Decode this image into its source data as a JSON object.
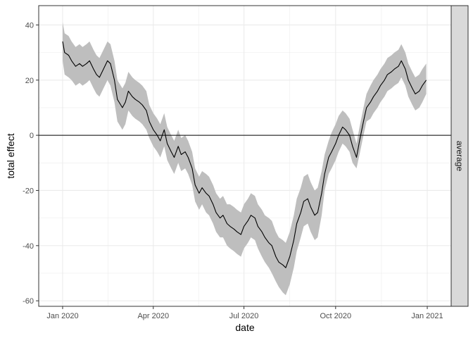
{
  "chart_data": {
    "type": "line",
    "title": "",
    "xlabel": "date",
    "ylabel": "total effect",
    "facet_label": "average",
    "xlim": [
      "2019-12-08",
      "2021-01-25"
    ],
    "ylim": [
      -62,
      47
    ],
    "x_ticks": [
      {
        "date": "2020-01-01",
        "label": "Jan 2020"
      },
      {
        "date": "2020-04-01",
        "label": "Apr 2020"
      },
      {
        "date": "2020-07-01",
        "label": "Jul 2020"
      },
      {
        "date": "2020-10-01",
        "label": "Oct 2020"
      },
      {
        "date": "2021-01-01",
        "label": "Jan 2021"
      }
    ],
    "y_ticks": [
      {
        "value": 40,
        "label": "40"
      },
      {
        "value": 20,
        "label": "20"
      },
      {
        "value": 0,
        "label": "0"
      },
      {
        "value": -20,
        "label": "-20"
      },
      {
        "value": -40,
        "label": "-40"
      },
      {
        "value": -60,
        "label": "-60"
      }
    ],
    "reference_line": 0,
    "grid": true,
    "colors": {
      "line": "#000000",
      "ribbon": "#bebebe",
      "strip": "#d9d9d9",
      "grid": "#ebebeb"
    },
    "series": [
      {
        "x": [
          "2020-01-01",
          "2020-01-03",
          "2020-01-07",
          "2020-01-10",
          "2020-01-14",
          "2020-01-18",
          "2020-01-21",
          "2020-01-25",
          "2020-01-28",
          "2020-02-01",
          "2020-02-04",
          "2020-02-07",
          "2020-02-11",
          "2020-02-15",
          "2020-02-18",
          "2020-02-22",
          "2020-02-25",
          "2020-03-01",
          "2020-03-04",
          "2020-03-07",
          "2020-03-11",
          "2020-03-14",
          "2020-03-18",
          "2020-03-21",
          "2020-03-25",
          "2020-03-28",
          "2020-04-01",
          "2020-04-05",
          "2020-04-08",
          "2020-04-12",
          "2020-04-15",
          "2020-04-19",
          "2020-04-22",
          "2020-04-26",
          "2020-04-29",
          "2020-05-03",
          "2020-05-06",
          "2020-05-10",
          "2020-05-13",
          "2020-05-17",
          "2020-05-20",
          "2020-05-24",
          "2020-05-27",
          "2020-05-31",
          "2020-06-03",
          "2020-06-07",
          "2020-06-10",
          "2020-06-14",
          "2020-06-17",
          "2020-06-21",
          "2020-06-24",
          "2020-06-28",
          "2020-07-01",
          "2020-07-05",
          "2020-07-08",
          "2020-07-12",
          "2020-07-15",
          "2020-07-19",
          "2020-07-22",
          "2020-07-26",
          "2020-07-29",
          "2020-08-02",
          "2020-08-05",
          "2020-08-09",
          "2020-08-12",
          "2020-08-16",
          "2020-08-20",
          "2020-08-23",
          "2020-08-27",
          "2020-08-30",
          "2020-09-03",
          "2020-09-06",
          "2020-09-10",
          "2020-09-13",
          "2020-09-17",
          "2020-09-20",
          "2020-09-24",
          "2020-09-27",
          "2020-10-01",
          "2020-10-04",
          "2020-10-08",
          "2020-10-11",
          "2020-10-15",
          "2020-10-18",
          "2020-10-22",
          "2020-10-25",
          "2020-10-29",
          "2020-11-01",
          "2020-11-05",
          "2020-11-08",
          "2020-11-12",
          "2020-11-15",
          "2020-11-19",
          "2020-11-22",
          "2020-11-26",
          "2020-11-29",
          "2020-12-03",
          "2020-12-06",
          "2020-12-10",
          "2020-12-13",
          "2020-12-17",
          "2020-12-20",
          "2020-12-24",
          "2020-12-27",
          "2020-12-31"
        ],
        "y": [
          34,
          30,
          29,
          27,
          25,
          26,
          25,
          26,
          27,
          24,
          22,
          21,
          24,
          27,
          26,
          20,
          13,
          10,
          12,
          16,
          14,
          13,
          12,
          11,
          9,
          5,
          2,
          0,
          -2,
          2,
          -3,
          -6,
          -8,
          -4,
          -7,
          -6,
          -8,
          -12,
          -18,
          -21,
          -19,
          -21,
          -22,
          -25,
          -28,
          -30,
          -29,
          -32,
          -33,
          -34,
          -35,
          -36,
          -33,
          -31,
          -29,
          -30,
          -33,
          -35,
          -37,
          -39,
          -40,
          -44,
          -46,
          -47,
          -48,
          -44,
          -38,
          -32,
          -28,
          -24,
          -23,
          -26,
          -29,
          -28,
          -21,
          -14,
          -8,
          -6,
          -3,
          0,
          3,
          2,
          0,
          -4,
          -8,
          -2,
          5,
          10,
          12,
          14,
          16,
          18,
          20,
          22,
          23,
          24,
          25,
          27,
          24,
          20,
          17,
          15,
          16,
          18,
          20
        ],
        "lower": [
          27,
          22,
          21,
          20,
          18,
          19,
          18,
          19,
          20,
          17,
          15,
          14,
          17,
          20,
          18,
          12,
          5,
          2,
          4,
          9,
          7,
          6,
          5,
          4,
          2,
          -1,
          -4,
          -6,
          -8,
          -4,
          -9,
          -12,
          -14,
          -10,
          -13,
          -12,
          -14,
          -18,
          -24,
          -27,
          -25,
          -28,
          -29,
          -32,
          -35,
          -37,
          -37,
          -40,
          -41,
          -42,
          -43,
          -44,
          -41,
          -39,
          -37,
          -38,
          -41,
          -44,
          -46,
          -48,
          -50,
          -53,
          -55,
          -57,
          -58,
          -54,
          -48,
          -42,
          -37,
          -33,
          -32,
          -35,
          -38,
          -37,
          -29,
          -20,
          -14,
          -12,
          -9,
          -6,
          -3,
          -4,
          -6,
          -10,
          -12,
          -7,
          0,
          5,
          6,
          8,
          10,
          12,
          14,
          16,
          17,
          18,
          19,
          21,
          18,
          14,
          11,
          9,
          10,
          12,
          15
        ],
        "upper": [
          41,
          37,
          36,
          34,
          32,
          33,
          32,
          33,
          34,
          31,
          29,
          28,
          31,
          34,
          33,
          27,
          20,
          17,
          19,
          23,
          21,
          20,
          19,
          18,
          16,
          11,
          8,
          6,
          4,
          8,
          3,
          0,
          -2,
          2,
          -1,
          0,
          -2,
          -6,
          -12,
          -15,
          -13,
          -14,
          -15,
          -18,
          -21,
          -23,
          -22,
          -25,
          -25,
          -26,
          -27,
          -28,
          -25,
          -23,
          -21,
          -22,
          -25,
          -27,
          -29,
          -30,
          -31,
          -35,
          -37,
          -38,
          -39,
          -35,
          -29,
          -23,
          -19,
          -15,
          -14,
          -17,
          -20,
          -19,
          -13,
          -7,
          -2,
          1,
          4,
          7,
          9,
          8,
          6,
          2,
          -3,
          3,
          10,
          15,
          18,
          20,
          22,
          24,
          26,
          28,
          29,
          30,
          31,
          33,
          30,
          26,
          23,
          21,
          22,
          24,
          26
        ]
      }
    ]
  }
}
